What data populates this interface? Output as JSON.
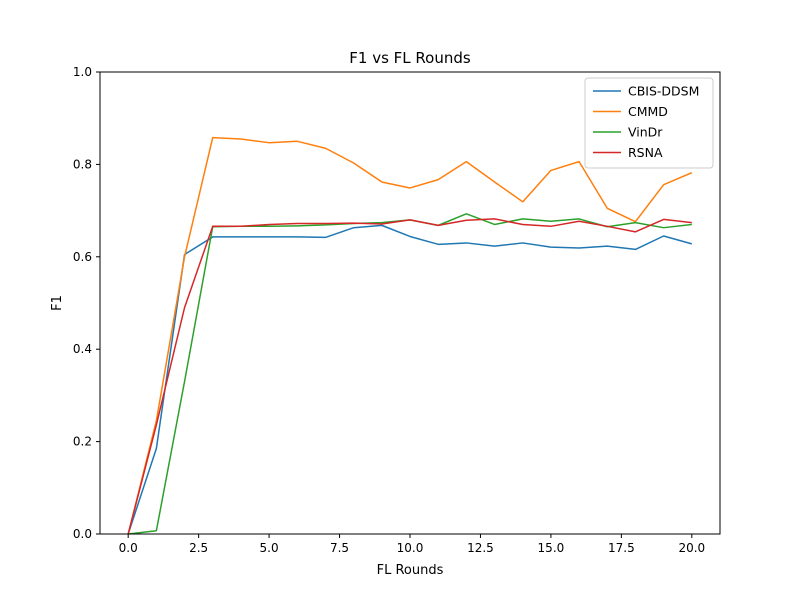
{
  "chart_data": {
    "type": "line",
    "title": "F1 vs FL Rounds",
    "xlabel": "FL Rounds",
    "ylabel": "F1",
    "xlim": [
      -1,
      21
    ],
    "ylim": [
      0,
      1.0
    ],
    "xticks": [
      0,
      2.5,
      5,
      7.5,
      10,
      12.5,
      15,
      17.5,
      20
    ],
    "xtick_labels": [
      "0.0",
      "2.5",
      "5.0",
      "7.5",
      "10.0",
      "12.5",
      "15.0",
      "17.5",
      "20.0"
    ],
    "yticks": [
      0,
      0.2,
      0.4,
      0.6,
      0.8,
      1.0
    ],
    "ytick_labels": [
      "0.0",
      "0.2",
      "0.4",
      "0.6",
      "0.8",
      "1.0"
    ],
    "grid": false,
    "legend_position": "top-right",
    "x": [
      0,
      1,
      2,
      3,
      4,
      5,
      6,
      7,
      8,
      9,
      10,
      11,
      12,
      13,
      14,
      15,
      16,
      17,
      18,
      19,
      20
    ],
    "series": [
      {
        "name": "CBIS-DDSM",
        "color": "#1f77b4",
        "values": [
          0.0,
          0.185,
          0.605,
          0.643,
          0.643,
          0.643,
          0.643,
          0.642,
          0.663,
          0.668,
          0.644,
          0.627,
          0.63,
          0.623,
          0.63,
          0.621,
          0.619,
          0.623,
          0.616,
          0.645,
          0.628
        ]
      },
      {
        "name": "CMMD",
        "color": "#ff7f0e",
        "values": [
          0.0,
          0.245,
          0.6,
          0.858,
          0.855,
          0.847,
          0.85,
          0.835,
          0.803,
          0.762,
          0.749,
          0.767,
          0.806,
          0.762,
          0.719,
          0.787,
          0.806,
          0.705,
          0.676,
          0.756,
          0.782
        ]
      },
      {
        "name": "VinDr",
        "color": "#2ca02c",
        "values": [
          0.0,
          0.007,
          0.33,
          0.665,
          0.666,
          0.666,
          0.667,
          0.669,
          0.672,
          0.674,
          0.68,
          0.668,
          0.693,
          0.67,
          0.682,
          0.677,
          0.682,
          0.665,
          0.674,
          0.663,
          0.67
        ]
      },
      {
        "name": "RSNA",
        "color": "#d62728",
        "values": [
          0.0,
          0.236,
          0.49,
          0.666,
          0.666,
          0.67,
          0.672,
          0.672,
          0.673,
          0.671,
          0.68,
          0.668,
          0.679,
          0.682,
          0.67,
          0.666,
          0.677,
          0.666,
          0.654,
          0.681,
          0.674
        ]
      }
    ]
  }
}
